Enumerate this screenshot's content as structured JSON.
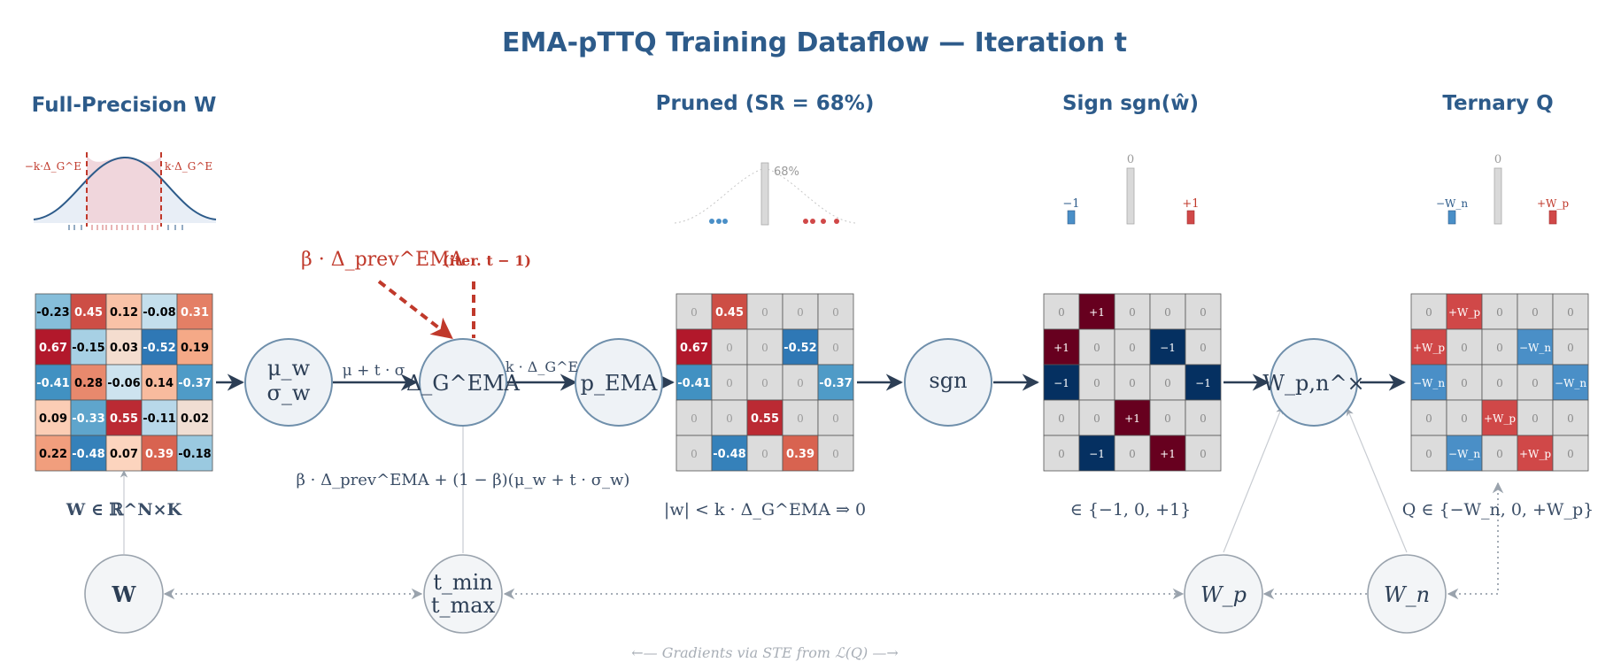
{
  "title": "EMA-pTTQ Training Dataflow — Iteration t",
  "headings": {
    "full_precision": "Full-Precision W",
    "pruned": "Pruned (SR = 68%)",
    "sign": "Sign sgn(ŵ)",
    "ternary": "Ternary Q"
  },
  "hist_fp": {
    "left_label": "−k·Δ_G^E",
    "right_label": "k·Δ_G^E"
  },
  "hist_pruned": {
    "zero_pct": "68%"
  },
  "hist_sign": {
    "neg": "−1",
    "zero": "0",
    "pos": "+1"
  },
  "hist_ternary": {
    "neg": "−W_n",
    "zero": "0",
    "pos": "+W_p"
  },
  "matrix_w": [
    [
      "-0.23",
      "0.45",
      "0.12",
      "-0.08",
      "0.31"
    ],
    [
      "0.67",
      "-0.15",
      "0.03",
      "-0.52",
      "0.19"
    ],
    [
      "-0.41",
      "0.28",
      "-0.06",
      "0.14",
      "-0.37"
    ],
    [
      "0.09",
      "-0.33",
      "0.55",
      "-0.11",
      "0.02"
    ],
    [
      "0.22",
      "-0.48",
      "0.07",
      "0.39",
      "-0.18"
    ]
  ],
  "matrix_pruned": [
    [
      "0",
      "0.45",
      "0",
      "0",
      "0"
    ],
    [
      "0.67",
      "0",
      "0",
      "-0.52",
      "0"
    ],
    [
      "-0.41",
      "0",
      "0",
      "0",
      "-0.37"
    ],
    [
      "0",
      "0",
      "0.55",
      "0",
      "0"
    ],
    [
      "0",
      "-0.48",
      "0",
      "0.39",
      "0"
    ]
  ],
  "matrix_sign": [
    [
      "0",
      "+1",
      "0",
      "0",
      "0"
    ],
    [
      "+1",
      "0",
      "0",
      "−1",
      "0"
    ],
    [
      "−1",
      "0",
      "0",
      "0",
      "−1"
    ],
    [
      "0",
      "0",
      "+1",
      "0",
      "0"
    ],
    [
      "0",
      "−1",
      "0",
      "+1",
      "0"
    ]
  ],
  "matrix_ternary": [
    [
      "0",
      "+W_p",
      "0",
      "0",
      "0"
    ],
    [
      "+W_p",
      "0",
      "0",
      "−W_n",
      "0"
    ],
    [
      "−W_n",
      "0",
      "0",
      "0",
      "−W_n"
    ],
    [
      "0",
      "0",
      "+W_p",
      "0",
      "0"
    ],
    [
      "0",
      "−W_n",
      "0",
      "+W_p",
      "0"
    ]
  ],
  "nodes": {
    "stats_mu": "μ_w",
    "stats_sigma": "σ_w",
    "delta": "Δ_G^EMA",
    "p_ema": "p_EMA",
    "sgn": "sgn",
    "w_pn": "W_p,n^×",
    "w": "W",
    "tmin": "t_min",
    "tmax": "t_max",
    "wp": "W_p",
    "wn": "W_n"
  },
  "edge_labels": {
    "mu_t_sigma": "μ + t · σ",
    "k_delta": "k · Δ_G^E"
  },
  "annotations": {
    "beta_prev": "β · Δ_prev^EMA",
    "iter_prev": "(iter. t − 1)",
    "ema_formula": "β · Δ_prev^EMA + (1 − β)(μ_w + t · σ_w)",
    "w_space": "W ∈ ℝ^N×K",
    "prune_rule": "|w| < k · Δ_G^EMA ⇒ 0",
    "sign_set": "∈ {−1, 0, +1}",
    "ternary_set": "Q ∈ {−W_n, 0, +W_p}",
    "gradients": "←— Gradients via STE from ℒ(Q) —→"
  },
  "colors": {
    "title": "#2d5b8a",
    "red_accent": "#c0392b",
    "zero_cell": "#dcdcdc",
    "sign_pos": "#67001f",
    "sign_neg": "#053061",
    "ternary_pos": "#d04848",
    "ternary_neg": "#4a8fc7"
  }
}
